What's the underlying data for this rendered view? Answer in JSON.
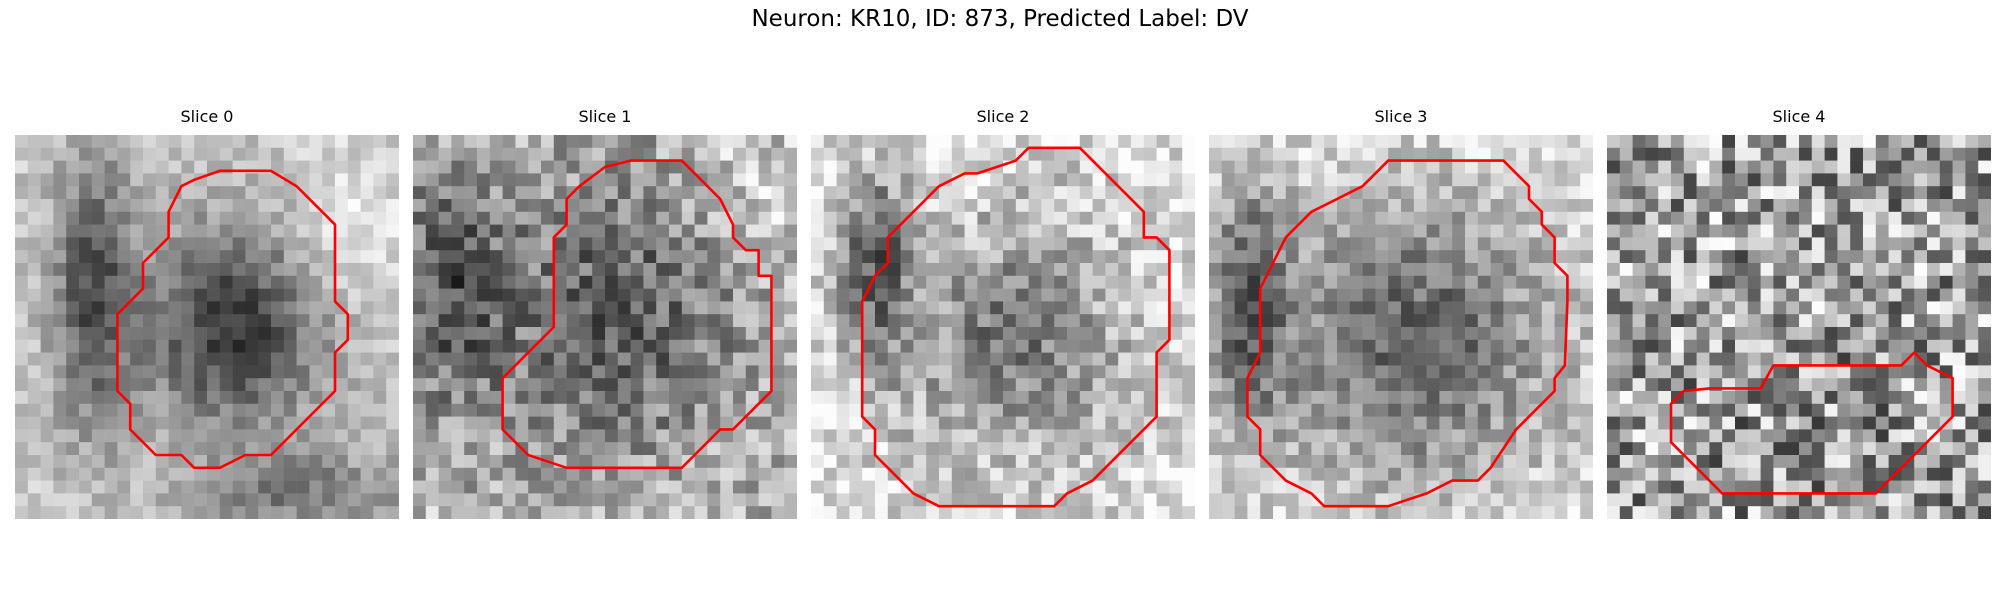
{
  "figure": {
    "title": "Neuron: KR10, ID: 873, Predicted Label: DV",
    "contour_color": "#ff0000",
    "colormap": "grayscale",
    "panels": [
      {
        "title": "Slice 0"
      },
      {
        "title": "Slice 1"
      },
      {
        "title": "Slice 2"
      },
      {
        "title": "Slice 3"
      },
      {
        "title": "Slice 4"
      }
    ]
  }
}
